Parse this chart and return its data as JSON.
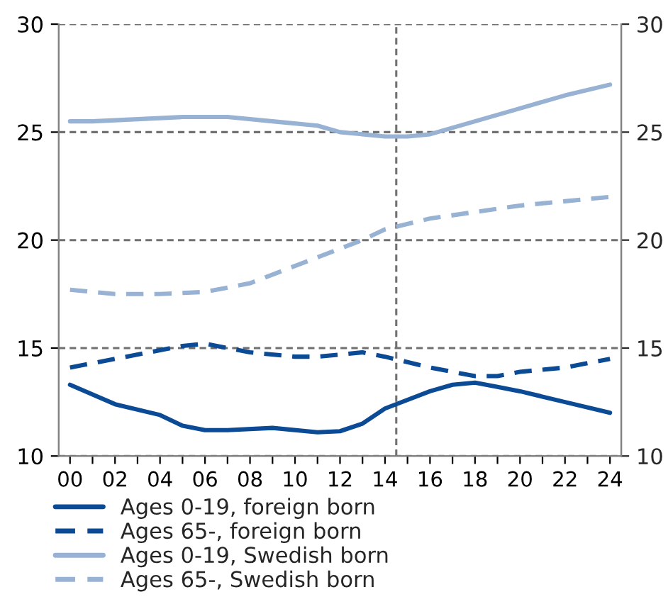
{
  "chart_data": {
    "type": "line",
    "xlim": [
      -0.5,
      24.5
    ],
    "xticks": [
      {
        "value": 0,
        "label": "00"
      },
      {
        "value": 1,
        "label": null
      },
      {
        "value": 2,
        "label": "02"
      },
      {
        "value": 3,
        "label": null
      },
      {
        "value": 4,
        "label": "04"
      },
      {
        "value": 5,
        "label": null
      },
      {
        "value": 6,
        "label": "06"
      },
      {
        "value": 7,
        "label": null
      },
      {
        "value": 8,
        "label": "08"
      },
      {
        "value": 9,
        "label": null
      },
      {
        "value": 10,
        "label": "10"
      },
      {
        "value": 11,
        "label": null
      },
      {
        "value": 12,
        "label": "12"
      },
      {
        "value": 13,
        "label": null
      },
      {
        "value": 14,
        "label": "14"
      },
      {
        "value": 15,
        "label": null
      },
      {
        "value": 16,
        "label": "16"
      },
      {
        "value": 17,
        "label": null
      },
      {
        "value": 18,
        "label": "18"
      },
      {
        "value": 19,
        "label": null
      },
      {
        "value": 20,
        "label": "20"
      },
      {
        "value": 21,
        "label": null
      },
      {
        "value": 22,
        "label": "22"
      },
      {
        "value": 23,
        "label": null
      },
      {
        "value": 24,
        "label": "24"
      }
    ],
    "ylim": [
      10,
      30
    ],
    "yticks": [
      10,
      15,
      20,
      25,
      30
    ],
    "y2lim": [
      10,
      30
    ],
    "y2ticks": [
      10,
      15,
      20,
      25,
      30
    ],
    "grid": "y",
    "legend": "bottom",
    "ref_lines": [
      {
        "axis": "x",
        "value": 14.5,
        "color": "#707070",
        "line_style": "dashed"
      }
    ],
    "series": [
      {
        "name": "Ages 0-19, foreign born",
        "color": "#0b4a94",
        "line_style": "solid",
        "x": [
          0,
          2,
          4,
          5,
          6,
          7,
          9,
          11,
          12,
          13,
          14,
          16,
          17,
          18,
          19,
          20,
          22,
          24
        ],
        "values": [
          13.3,
          12.4,
          11.9,
          11.4,
          11.2,
          11.2,
          11.3,
          11.1,
          11.15,
          11.5,
          12.2,
          13.0,
          13.3,
          13.4,
          13.2,
          13.0,
          12.5,
          12.0
        ]
      },
      {
        "name": "Ages 65-, foreign born",
        "color": "#0b4a94",
        "line_style": "dashed",
        "x": [
          0,
          2,
          4,
          5,
          6,
          8,
          10,
          11,
          12,
          13,
          14,
          16,
          17,
          18,
          19,
          20,
          22,
          24
        ],
        "values": [
          14.1,
          14.5,
          14.9,
          15.1,
          15.2,
          14.8,
          14.6,
          14.6,
          14.7,
          14.8,
          14.6,
          14.1,
          13.9,
          13.7,
          13.7,
          13.9,
          14.1,
          14.5
        ]
      },
      {
        "name": "Ages 0-19, Swedish born",
        "color": "#98b2d4",
        "line_style": "solid",
        "x": [
          0,
          1,
          3,
          5,
          7,
          9,
          11,
          12,
          14,
          15,
          16,
          18,
          20,
          22,
          24
        ],
        "values": [
          25.5,
          25.5,
          25.6,
          25.7,
          25.7,
          25.5,
          25.3,
          25.0,
          24.8,
          24.8,
          24.9,
          25.5,
          26.1,
          26.7,
          27.2
        ]
      },
      {
        "name": "Ages 65-, Swedish born",
        "color": "#98b2d4",
        "line_style": "dashed",
        "x": [
          0,
          2,
          4,
          6,
          8,
          9,
          10,
          12,
          13,
          14,
          16,
          18,
          20,
          22,
          24
        ],
        "values": [
          17.7,
          17.5,
          17.5,
          17.6,
          18.0,
          18.4,
          18.8,
          19.6,
          20.0,
          20.5,
          21.0,
          21.3,
          21.6,
          21.8,
          22.0
        ]
      }
    ]
  }
}
